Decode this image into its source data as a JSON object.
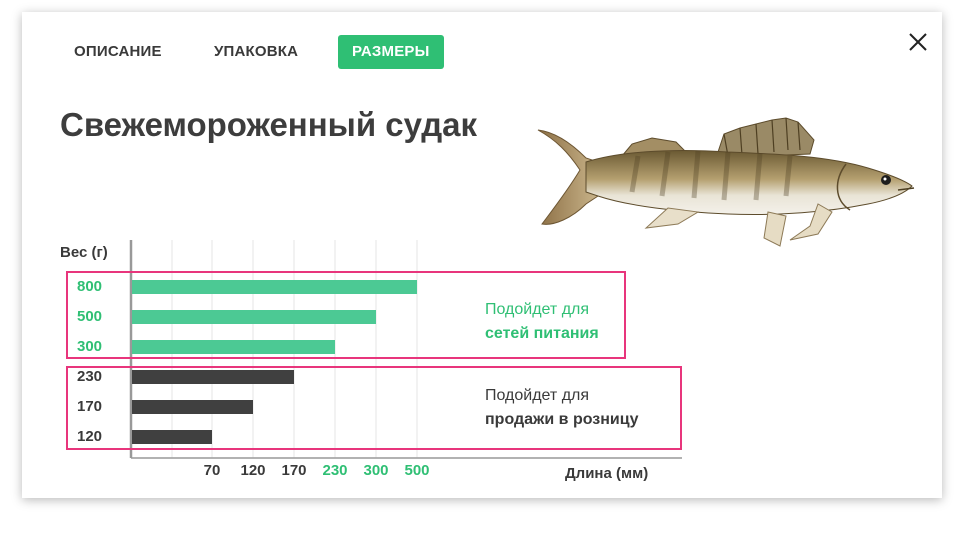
{
  "tabs": [
    {
      "label": "ОПИСАНИЕ",
      "active": false
    },
    {
      "label": "УПАКОВКА",
      "active": false
    },
    {
      "label": "РАЗМЕРЫ",
      "active": true
    }
  ],
  "product": {
    "title": "Свежемороженный судак",
    "image": "zander-fish"
  },
  "colors": {
    "accent": "#2fbf74",
    "bar_green": "#4cc994",
    "bar_dark": "#404040",
    "box": "#e8357c",
    "text_dark": "#3a3a3a"
  },
  "chart_data": {
    "type": "bar",
    "orientation": "horizontal",
    "ylabel": "Вес (г)",
    "xlabel": "Длина (мм)",
    "categories": [
      "800",
      "500",
      "300",
      "230",
      "170",
      "120"
    ],
    "values": [
      500,
      300,
      230,
      170,
      120,
      70
    ],
    "x_ticks": [
      "70",
      "120",
      "170",
      "230",
      "300",
      "500"
    ],
    "grid": true,
    "groups": [
      {
        "categories": [
          "800",
          "500",
          "300"
        ],
        "color": "green",
        "note_line1": "Подойдет для",
        "note_line2": "сетей питания"
      },
      {
        "categories": [
          "230",
          "170",
          "120"
        ],
        "color": "dark",
        "note_line1": "Подойдет для",
        "note_line2": "продажи в розницу"
      }
    ]
  }
}
